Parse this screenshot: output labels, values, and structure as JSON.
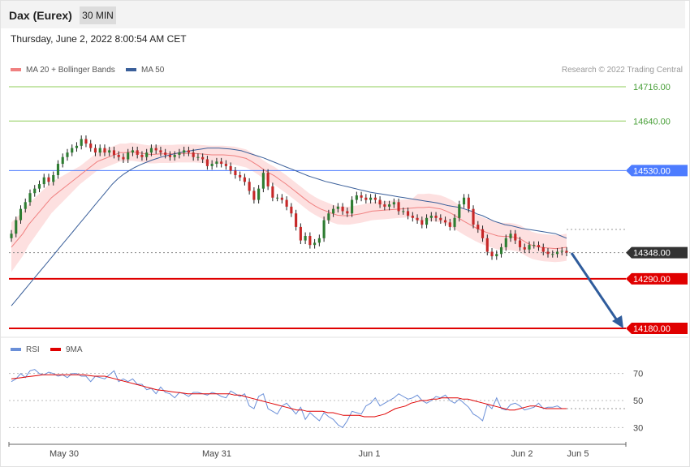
{
  "header": {
    "title": "Dax (Eurex)",
    "timeframe": "30 MIN"
  },
  "date_text": "Thursday, June 2, 2022 8:00:54 AM CET",
  "legend": {
    "ma20": "MA 20 + Bollinger Bands",
    "ma50": "MA 50",
    "rsi": "RSI",
    "ma9": "9MA"
  },
  "credit": "Research © 2022 Trading Central",
  "colors": {
    "ma20": "#f08080",
    "ma50": "#3a5f9a",
    "bb_fill": "#fde0e0",
    "bull": "#2e7d32",
    "bear": "#c62828",
    "support": "#e00000",
    "pivot": "#4d7cff",
    "resistance": "#8fce5a",
    "rsi": "#6a8fd8"
  },
  "chart_data": [
    {
      "type": "candlestick",
      "title": "Dax (Eurex)",
      "ylim": [
        14140,
        14760
      ],
      "x_tick_labels": [
        "May 30",
        "May 31",
        "Jun 1",
        "Jun 2",
        "Jun 5"
      ],
      "last_price": 14348,
      "levels": [
        {
          "value": 14716,
          "label": "14716.00",
          "kind": "resistance"
        },
        {
          "value": 14640,
          "label": "14640.00",
          "kind": "resistance"
        },
        {
          "value": 14530,
          "label": "14530.00",
          "kind": "pivot"
        },
        {
          "value": 14348,
          "label": "14348.00",
          "kind": "last"
        },
        {
          "value": 14290,
          "label": "14290.00",
          "kind": "support"
        },
        {
          "value": 14180,
          "label": "14180.00",
          "kind": "support"
        }
      ],
      "close": [
        14390,
        14420,
        14445,
        14460,
        14480,
        14490,
        14500,
        14515,
        14505,
        14520,
        14545,
        14560,
        14570,
        14580,
        14585,
        14600,
        14590,
        14580,
        14570,
        14580,
        14570,
        14575,
        14565,
        14560,
        14555,
        14570,
        14575,
        14565,
        14560,
        14570,
        14580,
        14575,
        14570,
        14565,
        14560,
        14565,
        14570,
        14575,
        14570,
        14560,
        14560,
        14555,
        14540,
        14545,
        14550,
        14545,
        14540,
        14530,
        14520,
        14515,
        14505,
        14485,
        14465,
        14490,
        14525,
        14495,
        14470,
        14470,
        14465,
        14450,
        14435,
        14405,
        14375,
        14385,
        14365,
        14370,
        14380,
        14420,
        14435,
        14445,
        14450,
        14440,
        14435,
        14465,
        14475,
        14470,
        14465,
        14470,
        14465,
        14455,
        14450,
        14455,
        14460,
        14440,
        14440,
        14430,
        14425,
        14420,
        14410,
        14425,
        14430,
        14425,
        14420,
        14415,
        14405,
        14425,
        14455,
        14470,
        14445,
        14410,
        14400,
        14380,
        14350,
        14340,
        14345,
        14360,
        14380,
        14390,
        14375,
        14360,
        14355,
        14365,
        14365,
        14360,
        14350,
        14345,
        14345,
        14350,
        14352,
        14348
      ],
      "ma20": [
        14360,
        14375,
        14390,
        14410,
        14425,
        14440,
        14455,
        14470,
        14480,
        14490,
        14500,
        14510,
        14520,
        14530,
        14540,
        14550,
        14555,
        14560,
        14565,
        14570,
        14570,
        14572,
        14570,
        14568,
        14566,
        14566,
        14567,
        14567,
        14567,
        14568,
        14568,
        14568,
        14568,
        14567,
        14566,
        14565,
        14565,
        14565,
        14564,
        14563,
        14560,
        14557,
        14550,
        14542,
        14533,
        14525,
        14518,
        14509,
        14500,
        14490,
        14480,
        14470,
        14460,
        14452,
        14445,
        14440,
        14435,
        14431,
        14430,
        14430,
        14432,
        14434,
        14437,
        14440,
        14441,
        14442,
        14443,
        14444,
        14445,
        14446,
        14447,
        14448,
        14448,
        14449,
        14447,
        14445,
        14440,
        14434,
        14426,
        14418,
        14411,
        14404,
        14398,
        14393,
        14389,
        14385,
        14384,
        14384,
        14382,
        14378,
        14370,
        14364,
        14361,
        14359,
        14358,
        14357,
        14358,
        14360
      ],
      "ma50": [
        14230,
        14245,
        14260,
        14275,
        14290,
        14305,
        14320,
        14335,
        14350,
        14365,
        14380,
        14395,
        14410,
        14425,
        14440,
        14455,
        14470,
        14485,
        14500,
        14512,
        14522,
        14530,
        14537,
        14543,
        14548,
        14553,
        14557,
        14561,
        14564,
        14567,
        14570,
        14572,
        14574,
        14576,
        14578,
        14580,
        14580,
        14580,
        14579,
        14578,
        14576,
        14574,
        14570,
        14566,
        14562,
        14558,
        14553,
        14548,
        14543,
        14538,
        14533,
        14528,
        14523,
        14518,
        14514,
        14510,
        14506,
        14503,
        14500,
        14497,
        14494,
        14491,
        14488,
        14485,
        14482,
        14480,
        14478,
        14476,
        14474,
        14472,
        14470,
        14468,
        14466,
        14464,
        14462,
        14460,
        14458,
        14455,
        14452,
        14450,
        14448,
        14444,
        14440,
        14434,
        14430,
        14424,
        14418,
        14414,
        14410,
        14408,
        14405,
        14402,
        14400,
        14398,
        14396,
        14394,
        14392,
        14390,
        14385,
        14380
      ]
    },
    {
      "type": "line",
      "title": "RSI",
      "ylim": [
        20,
        80
      ],
      "y_ticks": [
        30,
        50,
        70
      ],
      "series": [
        {
          "name": "RSI",
          "values": [
            64,
            66,
            70,
            67,
            72,
            73,
            70,
            69,
            71,
            70,
            68,
            69,
            67,
            70,
            70,
            68,
            68,
            64,
            68,
            67,
            66,
            69,
            72,
            64,
            66,
            64,
            66,
            62,
            62,
            58,
            59,
            55,
            60,
            56,
            55,
            52,
            56,
            55,
            53,
            56,
            56,
            55,
            54,
            56,
            55,
            53,
            52,
            57,
            55,
            53,
            55,
            46,
            44,
            53,
            55,
            44,
            42,
            40,
            46,
            48,
            44,
            40,
            45,
            36,
            41,
            38,
            35,
            41,
            38,
            36,
            32,
            30,
            35,
            42,
            41,
            40,
            46,
            48,
            52,
            46,
            48,
            50,
            52,
            55,
            53,
            51,
            52,
            54,
            50,
            48,
            50,
            53,
            52,
            54,
            50,
            48,
            51,
            48,
            45,
            40,
            38,
            35,
            47,
            44,
            52,
            44,
            43,
            47,
            48,
            46,
            43,
            44,
            45,
            48,
            44,
            45,
            45,
            46,
            44,
            44
          ]
        },
        {
          "name": "9MA",
          "values": [
            66,
            66.5,
            67,
            67.5,
            68,
            68.5,
            69,
            69,
            69,
            69,
            69,
            69,
            69,
            69,
            69,
            68.5,
            68,
            68,
            68,
            67,
            66,
            65,
            64,
            63,
            62,
            61,
            60,
            59,
            58,
            57.5,
            57,
            56.5,
            56,
            55.5,
            55,
            55,
            55,
            55,
            55,
            55,
            55,
            55,
            55,
            54,
            54,
            53,
            52,
            51,
            50,
            49,
            48,
            47,
            46,
            45,
            44,
            43,
            43,
            42,
            42,
            42,
            42,
            41,
            41,
            40,
            39,
            39,
            39,
            39,
            38,
            38,
            38,
            39,
            40,
            42,
            44,
            45,
            46,
            48,
            49,
            50,
            50,
            51,
            51,
            52,
            52,
            52,
            52,
            51,
            51,
            50,
            49,
            48,
            47,
            46,
            45,
            44,
            43,
            43,
            44,
            45,
            46,
            46,
            45,
            44,
            44,
            44,
            44,
            44
          ]
        }
      ]
    }
  ]
}
